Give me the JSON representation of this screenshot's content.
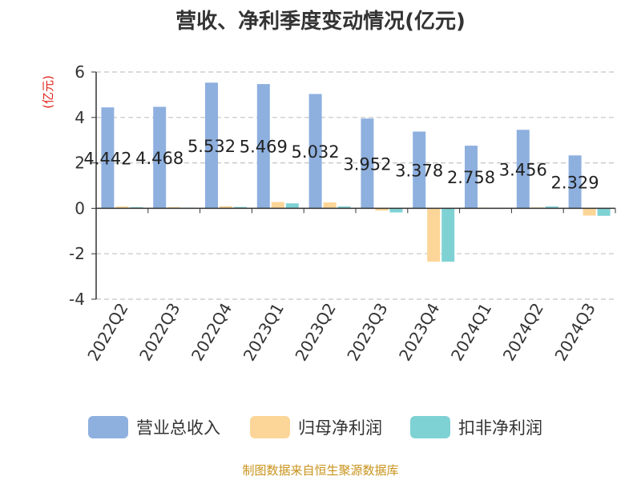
{
  "chart_data": {
    "type": "bar",
    "title": "营收、净利季度变动情况(亿元)",
    "ylabel": "(亿元)",
    "ylim": [
      -4,
      6
    ],
    "yticks": [
      6,
      4,
      2,
      0,
      -2,
      -4
    ],
    "grid": true,
    "legend_position": "bottom",
    "categories": [
      "2022Q2",
      "2022Q3",
      "2022Q4",
      "2023Q1",
      "2023Q2",
      "2023Q3",
      "2023Q4",
      "2024Q1",
      "2024Q2",
      "2024Q3"
    ],
    "series": [
      {
        "name": "营业总收入",
        "color": "#8eb0df",
        "values": [
          4.442,
          4.468,
          5.532,
          5.469,
          5.032,
          3.952,
          3.378,
          2.758,
          3.456,
          2.329
        ],
        "labels": [
          "4.442",
          "4.468",
          "5.532",
          "5.469",
          "5.032",
          "3.952",
          "3.378",
          "2.758",
          "3.456",
          "2.329"
        ]
      },
      {
        "name": "归母净利润",
        "color": "#fcd698",
        "values": [
          0.08,
          0.05,
          0.09,
          0.28,
          0.26,
          -0.1,
          -2.35,
          0.03,
          0.04,
          -0.32
        ]
      },
      {
        "name": "扣非净利润",
        "color": "#7fd2d4",
        "values": [
          0.05,
          0.03,
          0.06,
          0.22,
          0.08,
          -0.18,
          -2.35,
          0.02,
          0.08,
          -0.33
        ]
      }
    ]
  },
  "source": "制图数据来自恒生聚源数据库"
}
